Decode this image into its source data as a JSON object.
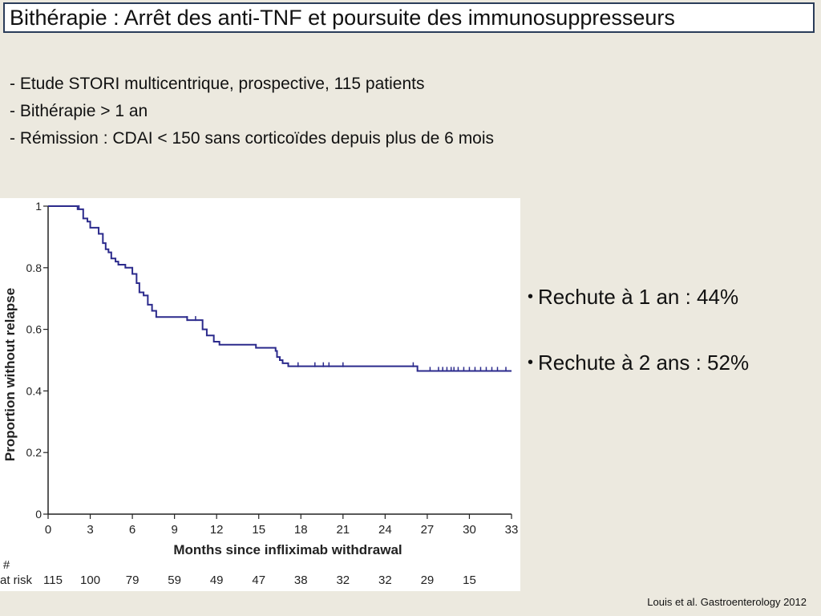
{
  "title": "Bithérapie : Arrêt des anti-TNF et poursuite des immunosuppresseurs",
  "bullets": [
    "- Etude STORI multicentrique, prospective, 115 patients",
    "- Bithérapie > 1 an",
    "- Rémission : CDAI < 150 sans corticoïdes depuis plus de 6 mois"
  ],
  "right_bullets": [
    "Rechute à 1 an : 44%",
    "Rechute à 2 ans : 52%"
  ],
  "citation": "Louis et al. Gastroenterology 2012",
  "chart_data": {
    "type": "line",
    "title": "",
    "xlabel": "Months since infliximab withdrawal",
    "ylabel": "Proportion without relapse",
    "xlim": [
      0,
      33
    ],
    "ylim": [
      0,
      1
    ],
    "x_ticks": [
      "0",
      "3",
      "6",
      "9",
      "12",
      "15",
      "18",
      "21",
      "24",
      "27",
      "30",
      "33"
    ],
    "y_ticks": [
      "0",
      "0.2",
      "0.4",
      "0.6",
      "0.8",
      "1"
    ],
    "grid": false,
    "line_color": "#2b2a8c",
    "series": [
      {
        "name": "",
        "x": [
          0,
          2.1,
          2.5,
          2.8,
          3.0,
          3.6,
          3.9,
          4.1,
          4.3,
          4.5,
          4.8,
          5.0,
          5.2,
          5.5,
          6.0,
          6.3,
          6.5,
          6.8,
          7.1,
          7.4,
          7.7,
          8.0,
          9.0,
          9.9,
          10.2,
          11.0,
          11.3,
          11.8,
          12.2,
          13.1,
          14.8,
          16.2,
          16.3,
          16.5,
          16.7,
          16.9,
          17.1,
          18.0,
          26.3,
          33.0
        ],
        "y": [
          1.0,
          0.99,
          0.96,
          0.95,
          0.93,
          0.91,
          0.88,
          0.86,
          0.85,
          0.83,
          0.82,
          0.81,
          0.81,
          0.8,
          0.78,
          0.75,
          0.72,
          0.71,
          0.68,
          0.66,
          0.64,
          0.64,
          0.64,
          0.63,
          0.63,
          0.6,
          0.58,
          0.56,
          0.55,
          0.55,
          0.54,
          0.53,
          0.51,
          0.5,
          0.49,
          0.49,
          0.48,
          0.48,
          0.465,
          0.465
        ]
      }
    ],
    "censor_x": [
      2.2,
      9.9,
      10.5,
      17.8,
      19.0,
      19.6,
      20.0,
      21.0,
      26.0,
      27.2,
      27.8,
      28.1,
      28.4,
      28.7,
      28.9,
      29.2,
      29.6,
      30.0,
      30.4,
      30.8,
      31.2,
      31.6,
      32.0,
      32.6
    ],
    "at_risk": {
      "label_hash": "#",
      "label": "at risk",
      "values": [
        "115",
        "100",
        "79",
        "59",
        "49",
        "47",
        "38",
        "32",
        "32",
        "29",
        "15"
      ]
    }
  }
}
